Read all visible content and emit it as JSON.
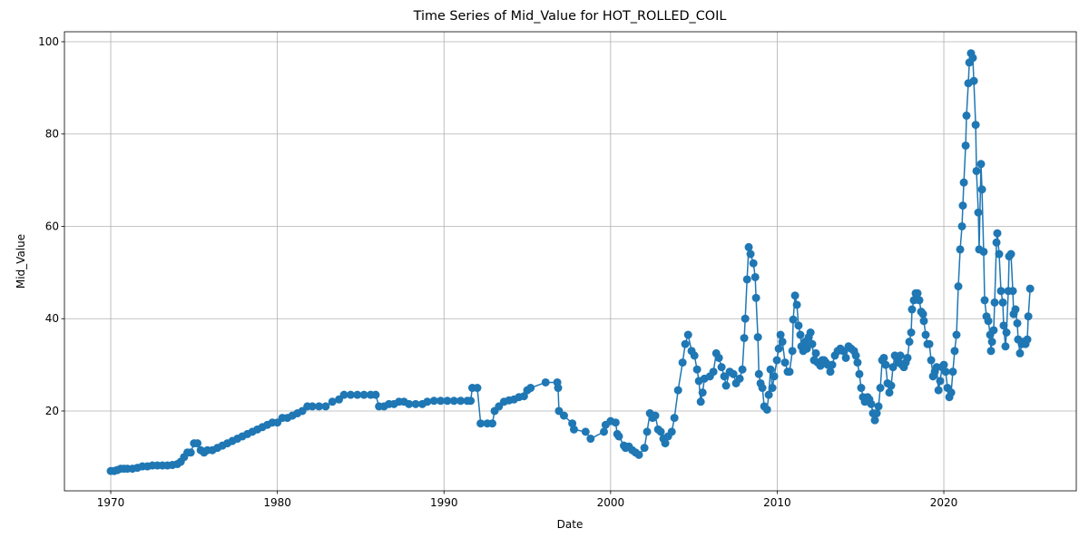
{
  "chart_data": {
    "type": "line",
    "title": "Time Series of Mid_Value for HOT_ROLLED_COIL",
    "x_label": "Date",
    "y_label": "Mid_Value",
    "x": [
      1970.0,
      1970.2,
      1970.4,
      1970.6,
      1970.8,
      1971.0,
      1971.3,
      1971.6,
      1971.9,
      1972.2,
      1972.5,
      1972.8,
      1973.1,
      1973.4,
      1973.7,
      1974.0,
      1974.2,
      1974.4,
      1974.6,
      1974.8,
      1975.0,
      1975.2,
      1975.4,
      1975.6,
      1975.8,
      1976.1,
      1976.4,
      1976.7,
      1977.0,
      1977.3,
      1977.6,
      1977.9,
      1978.2,
      1978.5,
      1978.8,
      1979.1,
      1979.4,
      1979.7,
      1980.0,
      1980.3,
      1980.6,
      1980.9,
      1981.2,
      1981.5,
      1981.8,
      1982.1,
      1982.5,
      1982.9,
      1983.3,
      1983.7,
      1984.0,
      1984.4,
      1984.8,
      1985.2,
      1985.6,
      1985.9,
      1986.1,
      1986.4,
      1986.7,
      1987.0,
      1987.3,
      1987.6,
      1987.9,
      1988.3,
      1988.7,
      1989.0,
      1989.4,
      1989.8,
      1990.2,
      1990.6,
      1991.0,
      1991.4,
      1991.6,
      1991.7,
      1992.0,
      1992.2,
      1992.6,
      1992.9,
      1993.04,
      1993.3,
      1993.6,
      1993.9,
      1994.2,
      1994.5,
      1994.8,
      1995.0,
      1995.2,
      1996.1,
      1996.8,
      1996.85,
      1996.9,
      1997.2,
      1997.7,
      1997.8,
      1998.5,
      1998.8,
      1999.6,
      1999.7,
      2000.0,
      2000.3,
      2000.4,
      2000.5,
      2000.8,
      2000.9,
      2001.1,
      2001.3,
      2001.5,
      2001.7,
      2002.03,
      2002.19,
      2002.36,
      2002.52,
      2002.68,
      2002.85,
      2003.01,
      2003.17,
      2003.28,
      2003.45,
      2003.67,
      2003.83,
      2004.05,
      2004.32,
      2004.48,
      2004.65,
      2004.86,
      2005.03,
      2005.19,
      2005.3,
      2005.41,
      2005.52,
      2005.63,
      2005.96,
      2006.17,
      2006.34,
      2006.5,
      2006.66,
      2006.82,
      2006.93,
      2007.15,
      2007.37,
      2007.53,
      2007.75,
      2007.91,
      2008.02,
      2008.08,
      2008.19,
      2008.29,
      2008.4,
      2008.57,
      2008.68,
      2008.73,
      2008.84,
      2008.9,
      2009.0,
      2009.11,
      2009.22,
      2009.39,
      2009.49,
      2009.6,
      2009.71,
      2009.82,
      2009.98,
      2010.09,
      2010.2,
      2010.31,
      2010.47,
      2010.63,
      2010.74,
      2010.91,
      2010.96,
      2011.07,
      2011.18,
      2011.28,
      2011.39,
      2011.45,
      2011.56,
      2011.67,
      2011.78,
      2011.89,
      2012.0,
      2012.1,
      2012.21,
      2012.32,
      2012.43,
      2012.59,
      2012.7,
      2012.81,
      2012.92,
      2013.03,
      2013.19,
      2013.3,
      2013.46,
      2013.63,
      2013.79,
      2013.95,
      2014.12,
      2014.28,
      2014.44,
      2014.61,
      2014.72,
      2014.82,
      2014.93,
      2015.04,
      2015.15,
      2015.26,
      2015.42,
      2015.53,
      2015.64,
      2015.75,
      2015.86,
      2015.97,
      2016.08,
      2016.19,
      2016.3,
      2016.4,
      2016.51,
      2016.62,
      2016.73,
      2016.84,
      2016.95,
      2017.06,
      2017.17,
      2017.28,
      2017.39,
      2017.49,
      2017.6,
      2017.71,
      2017.82,
      2017.93,
      2018.04,
      2018.09,
      2018.2,
      2018.31,
      2018.42,
      2018.53,
      2018.64,
      2018.75,
      2018.8,
      2018.91,
      2019.02,
      2019.13,
      2019.24,
      2019.35,
      2019.46,
      2019.57,
      2019.68,
      2019.78,
      2019.89,
      2020.0,
      2020.11,
      2020.22,
      2020.33,
      2020.44,
      2020.54,
      2020.65,
      2020.76,
      2020.87,
      2020.98,
      2021.09,
      2021.14,
      2021.2,
      2021.31,
      2021.36,
      2021.47,
      2021.53,
      2021.63,
      2021.74,
      2021.8,
      2021.91,
      2021.96,
      2022.07,
      2022.12,
      2022.23,
      2022.29,
      2022.39,
      2022.45,
      2022.56,
      2022.67,
      2022.78,
      2022.83,
      2022.89,
      2022.99,
      2023.05,
      2023.16,
      2023.21,
      2023.32,
      2023.43,
      2023.54,
      2023.59,
      2023.7,
      2023.76,
      2023.87,
      2023.92,
      2024.03,
      2024.14,
      2024.19,
      2024.3,
      2024.41,
      2024.46,
      2024.57,
      2024.68,
      2024.79,
      2024.9,
      2025.01,
      2025.07,
      2025.18
    ],
    "values": [
      7,
      7,
      7.2,
      7.5,
      7.5,
      7.5,
      7.5,
      7.7,
      8,
      8,
      8.2,
      8.2,
      8.2,
      8.2,
      8.3,
      8.5,
      9,
      10,
      11,
      11,
      13,
      13,
      11.5,
      11,
      11.5,
      11.5,
      12,
      12.5,
      13,
      13.5,
      14,
      14.5,
      15,
      15.5,
      16,
      16.5,
      17,
      17.5,
      17.5,
      18.5,
      18.5,
      19,
      19.5,
      20,
      21,
      21,
      21,
      21,
      22,
      22.5,
      23.5,
      23.5,
      23.5,
      23.5,
      23.5,
      23.5,
      21,
      21,
      21.5,
      21.5,
      22,
      22,
      21.5,
      21.5,
      21.5,
      22,
      22.2,
      22.2,
      22.2,
      22.2,
      22.2,
      22.2,
      22.2,
      25,
      25,
      17.3,
      17.3,
      17.3,
      20,
      21,
      22,
      22.3,
      22.5,
      23,
      23.2,
      24.5,
      25,
      26.2,
      26.2,
      25,
      20,
      19,
      17.3,
      16,
      15.5,
      14,
      15.5,
      17,
      17.8,
      17.5,
      15,
      14.5,
      12.5,
      12,
      12.3,
      11.5,
      11,
      10.5,
      12,
      15.5,
      19.5,
      18.5,
      19,
      16,
      15.5,
      14,
      13,
      14.5,
      15.5,
      18.5,
      24.5,
      30.5,
      34.5,
      36.5,
      33,
      32,
      29,
      26.5,
      22,
      24,
      27,
      27.5,
      28.5,
      32.5,
      31.5,
      29.5,
      27.5,
      25.5,
      28.5,
      28,
      26,
      27,
      29,
      35.8,
      40,
      48.5,
      55.5,
      54,
      52,
      49,
      44.5,
      36,
      28,
      26,
      25,
      21,
      20.3,
      23.5,
      29,
      25,
      27.5,
      31,
      33.5,
      36.5,
      35,
      30.5,
      28.5,
      28.5,
      33,
      39.8,
      45,
      43,
      38.5,
      36.5,
      34,
      33,
      35,
      33.5,
      36,
      37,
      34.5,
      31,
      32.5,
      30.5,
      29.8,
      31,
      31,
      30.5,
      30,
      28.5,
      30,
      32,
      33,
      33.5,
      33,
      31.5,
      34,
      33.5,
      33,
      32,
      30.5,
      28,
      25,
      23,
      22,
      23,
      22.5,
      21.5,
      19.5,
      18,
      19.5,
      21,
      25,
      31,
      31.5,
      30,
      26,
      24,
      25.5,
      29.5,
      32,
      31.5,
      30.5,
      32,
      30,
      29.5,
      30.5,
      31.5,
      35,
      37,
      42,
      44,
      45.5,
      45.5,
      44,
      41.5,
      41,
      39.5,
      36.5,
      34.5,
      34.5,
      31,
      27.5,
      28.5,
      29.5,
      24.5,
      26.5,
      29.5,
      30,
      28.5,
      25,
      23,
      24,
      28.5,
      33,
      36.5,
      47,
      55,
      60,
      64.5,
      69.5,
      77.5,
      84,
      91,
      95.5,
      97.5,
      96.5,
      91.5,
      82,
      72,
      63,
      55,
      73.5,
      68,
      54.5,
      44,
      40.5,
      39.5,
      36.5,
      33,
      35,
      37.5,
      43.5,
      56.5,
      58.5,
      54,
      46,
      43.5,
      38.5,
      34,
      37,
      46,
      53.5,
      54,
      46,
      41,
      42,
      39,
      35.5,
      32.5,
      34.5,
      35,
      34.5,
      35.5,
      40.5,
      46.5
    ],
    "color": "#1f77b4",
    "xlim": [
      1967.22,
      2027.95
    ],
    "xticks": [
      1970,
      1980,
      1990,
      2000,
      2010,
      2020
    ],
    "ylim": [
      2.7,
      102.16
    ],
    "yticks": [
      20,
      40,
      60,
      80,
      100
    ],
    "grid": true
  }
}
